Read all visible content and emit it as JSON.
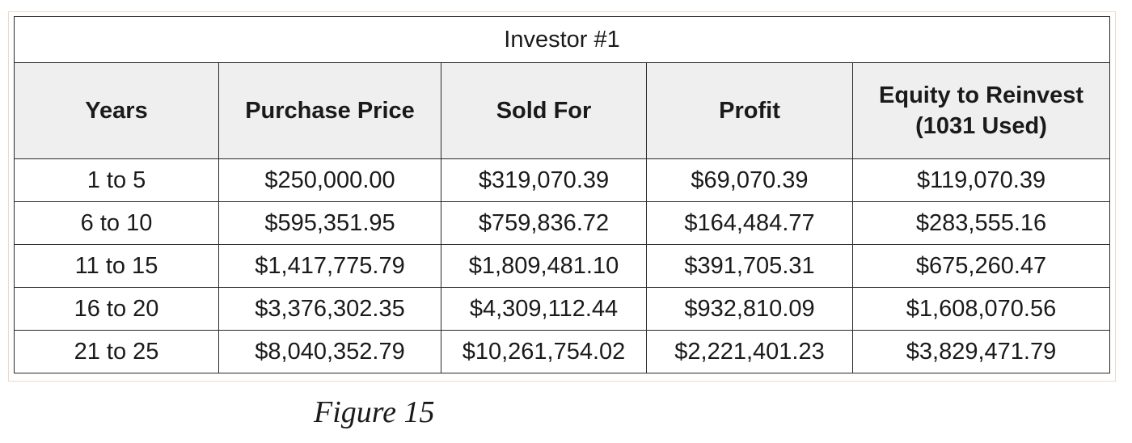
{
  "table": {
    "title": "Investor #1",
    "headers": [
      "Years",
      "Purchase Price",
      "Sold For",
      "Profit",
      "Equity to Reinvest (1031 Used)"
    ],
    "header_last_line1": "Equity to Reinvest",
    "header_last_line2": "(1031 Used)",
    "rows": [
      [
        "1 to 5",
        "$250,000.00",
        "$319,070.39",
        "$69,070.39",
        "$119,070.39"
      ],
      [
        "6 to 10",
        "$595,351.95",
        "$759,836.72",
        "$164,484.77",
        "$283,555.16"
      ],
      [
        "11 to 15",
        "$1,417,775.79",
        "$1,809,481.10",
        "$391,705.31",
        "$675,260.47"
      ],
      [
        "16 to 20",
        "$3,376,302.35",
        "$4,309,112.44",
        "$932,810.09",
        "$1,608,070.56"
      ],
      [
        "21 to 25",
        "$8,040,352.79",
        "$10,261,754.02",
        "$2,221,401.23",
        "$3,829,471.79"
      ]
    ]
  },
  "caption": "Figure 15",
  "colors": {
    "header_bg": "#efefef",
    "border": "#2a2a2a",
    "frame_border": "#f0d9c8"
  }
}
